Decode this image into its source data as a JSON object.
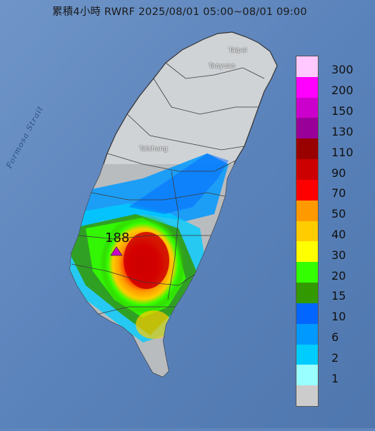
{
  "title": "累積4小時 RWRF 2025/08/01 05:00~08/01 09:00",
  "strait_label": "Formosa Strait",
  "places": {
    "taipei": "Taipei",
    "taoyuan": "Taoyuan",
    "taichung": "Taichung"
  },
  "max_value": "188",
  "legend": {
    "items": [
      {
        "label": "300",
        "color": "#ffc8ff"
      },
      {
        "label": "200",
        "color": "#ff00ff"
      },
      {
        "label": "150",
        "color": "#cc00cc"
      },
      {
        "label": "130",
        "color": "#990099"
      },
      {
        "label": "110",
        "color": "#990000"
      },
      {
        "label": "90",
        "color": "#cc0000"
      },
      {
        "label": "70",
        "color": "#ff0000"
      },
      {
        "label": "50",
        "color": "#ff9900"
      },
      {
        "label": "40",
        "color": "#ffcc00"
      },
      {
        "label": "30",
        "color": "#ffff00"
      },
      {
        "label": "20",
        "color": "#33ff00"
      },
      {
        "label": "15",
        "color": "#339900"
      },
      {
        "label": "10",
        "color": "#0066ff"
      },
      {
        "label": "6",
        "color": "#0099ff"
      },
      {
        "label": "2",
        "color": "#00ccff"
      },
      {
        "label": "1",
        "color": "#99ffff"
      },
      {
        "label": "",
        "color": "#cccccc"
      }
    ]
  }
}
